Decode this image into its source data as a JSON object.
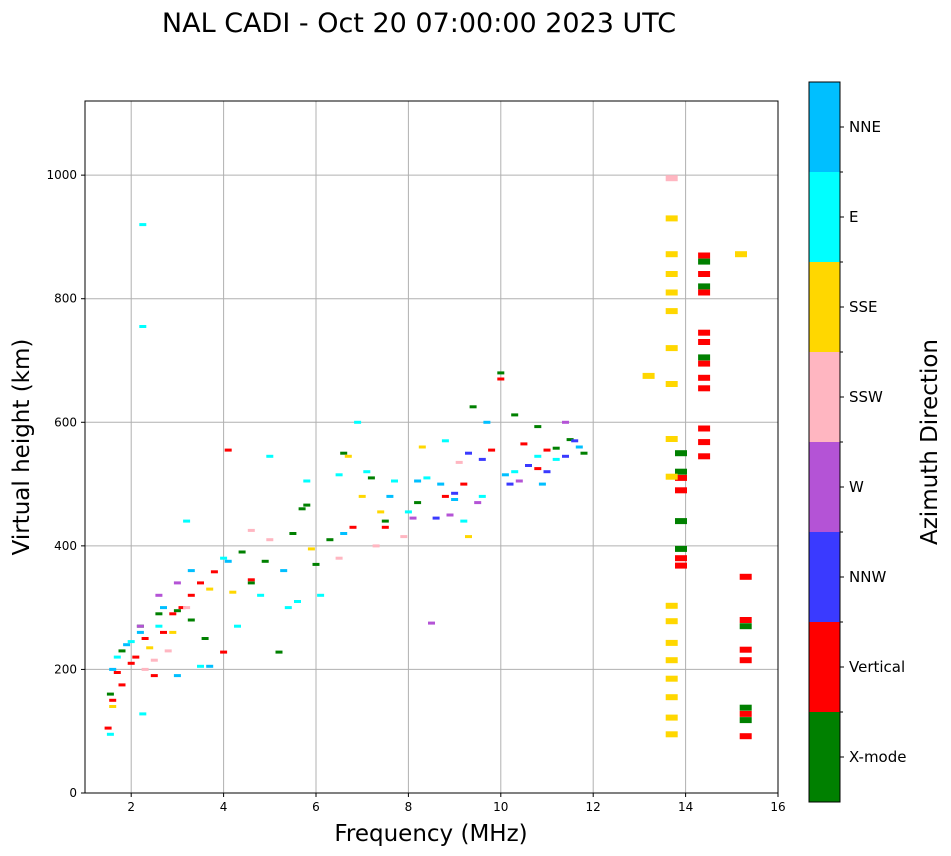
{
  "chart_data": {
    "type": "scatter",
    "title": "NAL CADI - Oct 20 07:00:00 2023 UTC",
    "xlabel": "Frequency (MHz)",
    "ylabel": "Virtual height (km)",
    "xlim": [
      1,
      16
    ],
    "ylim": [
      0,
      1120
    ],
    "xticks": [
      2,
      4,
      6,
      8,
      10,
      12,
      14,
      16
    ],
    "yticks": [
      0,
      200,
      400,
      600,
      800,
      1000
    ],
    "grid": true,
    "colorbar": {
      "label": "Azimuth Direction",
      "categories": [
        "X-mode",
        "Vertical",
        "NNW",
        "W",
        "SSW",
        "SSE",
        "E",
        "NNE"
      ],
      "colors": [
        "#008000",
        "#ff0000",
        "#3a3aff",
        "#b453d6",
        "#ffb6c1",
        "#ffd700",
        "#00ffff",
        "#00bfff"
      ]
    },
    "series": [
      {
        "name": "X-mode",
        "color": "#008000",
        "points": [
          [
            1.55,
            160
          ],
          [
            1.8,
            230
          ],
          [
            2.2,
            270
          ],
          [
            2.6,
            290
          ],
          [
            3.0,
            295
          ],
          [
            3.3,
            280
          ],
          [
            3.6,
            250
          ],
          [
            4.4,
            390
          ],
          [
            4.6,
            340
          ],
          [
            4.9,
            375
          ],
          [
            5.2,
            228
          ],
          [
            5.5,
            420
          ],
          [
            5.7,
            460
          ],
          [
            5.8,
            466
          ],
          [
            6.0,
            370
          ],
          [
            6.3,
            410
          ],
          [
            6.6,
            550
          ],
          [
            7.2,
            510
          ],
          [
            7.5,
            440
          ],
          [
            8.2,
            470
          ],
          [
            9.4,
            625
          ],
          [
            10.0,
            680
          ],
          [
            10.3,
            612
          ],
          [
            10.8,
            593
          ],
          [
            11.2,
            558
          ],
          [
            11.5,
            572
          ],
          [
            11.8,
            550
          ],
          [
            13.9,
            550
          ],
          [
            13.9,
            520
          ],
          [
            13.9,
            440
          ],
          [
            13.9,
            395
          ],
          [
            14.4,
            860
          ],
          [
            14.4,
            820
          ],
          [
            14.4,
            705
          ],
          [
            15.3,
            270
          ],
          [
            15.3,
            138
          ],
          [
            15.3,
            118
          ]
        ]
      },
      {
        "name": "Vertical",
        "color": "#ff0000",
        "points": [
          [
            1.5,
            105
          ],
          [
            1.6,
            150
          ],
          [
            1.7,
            195
          ],
          [
            1.8,
            175
          ],
          [
            2.0,
            210
          ],
          [
            2.1,
            220
          ],
          [
            2.3,
            250
          ],
          [
            2.5,
            190
          ],
          [
            2.7,
            260
          ],
          [
            2.9,
            290
          ],
          [
            3.1,
            300
          ],
          [
            3.3,
            320
          ],
          [
            3.5,
            340
          ],
          [
            3.8,
            358
          ],
          [
            4.1,
            555
          ],
          [
            4.0,
            228
          ],
          [
            4.6,
            345
          ],
          [
            6.8,
            430
          ],
          [
            7.5,
            430
          ],
          [
            8.8,
            480
          ],
          [
            9.2,
            500
          ],
          [
            9.8,
            555
          ],
          [
            10.0,
            670
          ],
          [
            10.5,
            565
          ],
          [
            10.8,
            525
          ],
          [
            11.0,
            555
          ],
          [
            13.9,
            510
          ],
          [
            13.9,
            490
          ],
          [
            13.9,
            380
          ],
          [
            13.9,
            368
          ],
          [
            14.4,
            870
          ],
          [
            14.4,
            840
          ],
          [
            14.4,
            810
          ],
          [
            14.4,
            745
          ],
          [
            14.4,
            730
          ],
          [
            14.4,
            695
          ],
          [
            14.4,
            672
          ],
          [
            14.4,
            655
          ],
          [
            14.4,
            590
          ],
          [
            14.4,
            568
          ],
          [
            14.4,
            545
          ],
          [
            15.3,
            350
          ],
          [
            15.3,
            280
          ],
          [
            15.3,
            232
          ],
          [
            15.3,
            215
          ],
          [
            15.3,
            128
          ],
          [
            15.3,
            92
          ]
        ]
      },
      {
        "name": "NNW",
        "color": "#3a3aff",
        "points": [
          [
            8.6,
            445
          ],
          [
            9.0,
            485
          ],
          [
            9.3,
            550
          ],
          [
            9.6,
            540
          ],
          [
            10.2,
            500
          ],
          [
            10.6,
            530
          ],
          [
            11.0,
            520
          ],
          [
            11.4,
            545
          ],
          [
            11.6,
            570
          ]
        ]
      },
      {
        "name": "W",
        "color": "#b453d6",
        "points": [
          [
            2.2,
            270
          ],
          [
            2.6,
            320
          ],
          [
            3.0,
            340
          ],
          [
            8.1,
            445
          ],
          [
            8.5,
            275
          ],
          [
            8.9,
            450
          ],
          [
            9.5,
            470
          ],
          [
            10.4,
            505
          ],
          [
            11.4,
            600
          ]
        ]
      },
      {
        "name": "SSW",
        "color": "#ffb6c1",
        "points": [
          [
            2.3,
            200
          ],
          [
            2.5,
            215
          ],
          [
            2.8,
            230
          ],
          [
            3.2,
            300
          ],
          [
            4.6,
            425
          ],
          [
            5.0,
            410
          ],
          [
            6.5,
            380
          ],
          [
            7.3,
            400
          ],
          [
            7.9,
            415
          ],
          [
            9.1,
            535
          ],
          [
            13.7,
            995
          ]
        ]
      },
      {
        "name": "SSE",
        "color": "#ffd700",
        "points": [
          [
            1.6,
            140
          ],
          [
            2.4,
            235
          ],
          [
            2.9,
            260
          ],
          [
            3.7,
            330
          ],
          [
            4.2,
            325
          ],
          [
            5.9,
            395
          ],
          [
            6.7,
            545
          ],
          [
            7.0,
            480
          ],
          [
            7.4,
            455
          ],
          [
            8.3,
            560
          ],
          [
            9.3,
            415
          ],
          [
            13.2,
            675
          ],
          [
            13.7,
            930
          ],
          [
            13.7,
            872
          ],
          [
            13.7,
            840
          ],
          [
            13.7,
            810
          ],
          [
            13.7,
            780
          ],
          [
            13.7,
            720
          ],
          [
            13.7,
            662
          ],
          [
            13.7,
            573
          ],
          [
            13.7,
            512
          ],
          [
            13.7,
            303
          ],
          [
            13.7,
            278
          ],
          [
            13.7,
            243
          ],
          [
            13.7,
            215
          ],
          [
            13.7,
            185
          ],
          [
            13.7,
            155
          ],
          [
            13.7,
            122
          ],
          [
            13.7,
            95
          ],
          [
            15.2,
            872
          ]
        ]
      },
      {
        "name": "E",
        "color": "#00ffff",
        "points": [
          [
            1.55,
            95
          ],
          [
            1.7,
            220
          ],
          [
            2.0,
            245
          ],
          [
            2.25,
            920
          ],
          [
            2.25,
            755
          ],
          [
            2.25,
            128
          ],
          [
            2.6,
            270
          ],
          [
            3.2,
            440
          ],
          [
            3.5,
            205
          ],
          [
            4.0,
            380
          ],
          [
            4.3,
            270
          ],
          [
            4.8,
            320
          ],
          [
            5.0,
            545
          ],
          [
            5.4,
            300
          ],
          [
            5.6,
            310
          ],
          [
            5.8,
            505
          ],
          [
            6.1,
            320
          ],
          [
            6.5,
            515
          ],
          [
            6.9,
            600
          ],
          [
            7.1,
            520
          ],
          [
            7.7,
            505
          ],
          [
            8.0,
            455
          ],
          [
            8.4,
            510
          ],
          [
            8.8,
            570
          ],
          [
            9.2,
            440
          ],
          [
            9.6,
            480
          ],
          [
            10.3,
            520
          ],
          [
            10.8,
            545
          ],
          [
            11.2,
            540
          ]
        ]
      },
      {
        "name": "NNE",
        "color": "#00bfff",
        "points": [
          [
            1.6,
            200
          ],
          [
            1.9,
            240
          ],
          [
            2.2,
            260
          ],
          [
            2.7,
            300
          ],
          [
            3.0,
            190
          ],
          [
            3.3,
            360
          ],
          [
            3.7,
            205
          ],
          [
            4.1,
            375
          ],
          [
            5.3,
            360
          ],
          [
            6.6,
            420
          ],
          [
            7.6,
            480
          ],
          [
            8.2,
            505
          ],
          [
            8.7,
            500
          ],
          [
            9.0,
            475
          ],
          [
            9.7,
            600
          ],
          [
            10.1,
            515
          ],
          [
            10.9,
            500
          ],
          [
            11.7,
            560
          ]
        ]
      }
    ]
  }
}
